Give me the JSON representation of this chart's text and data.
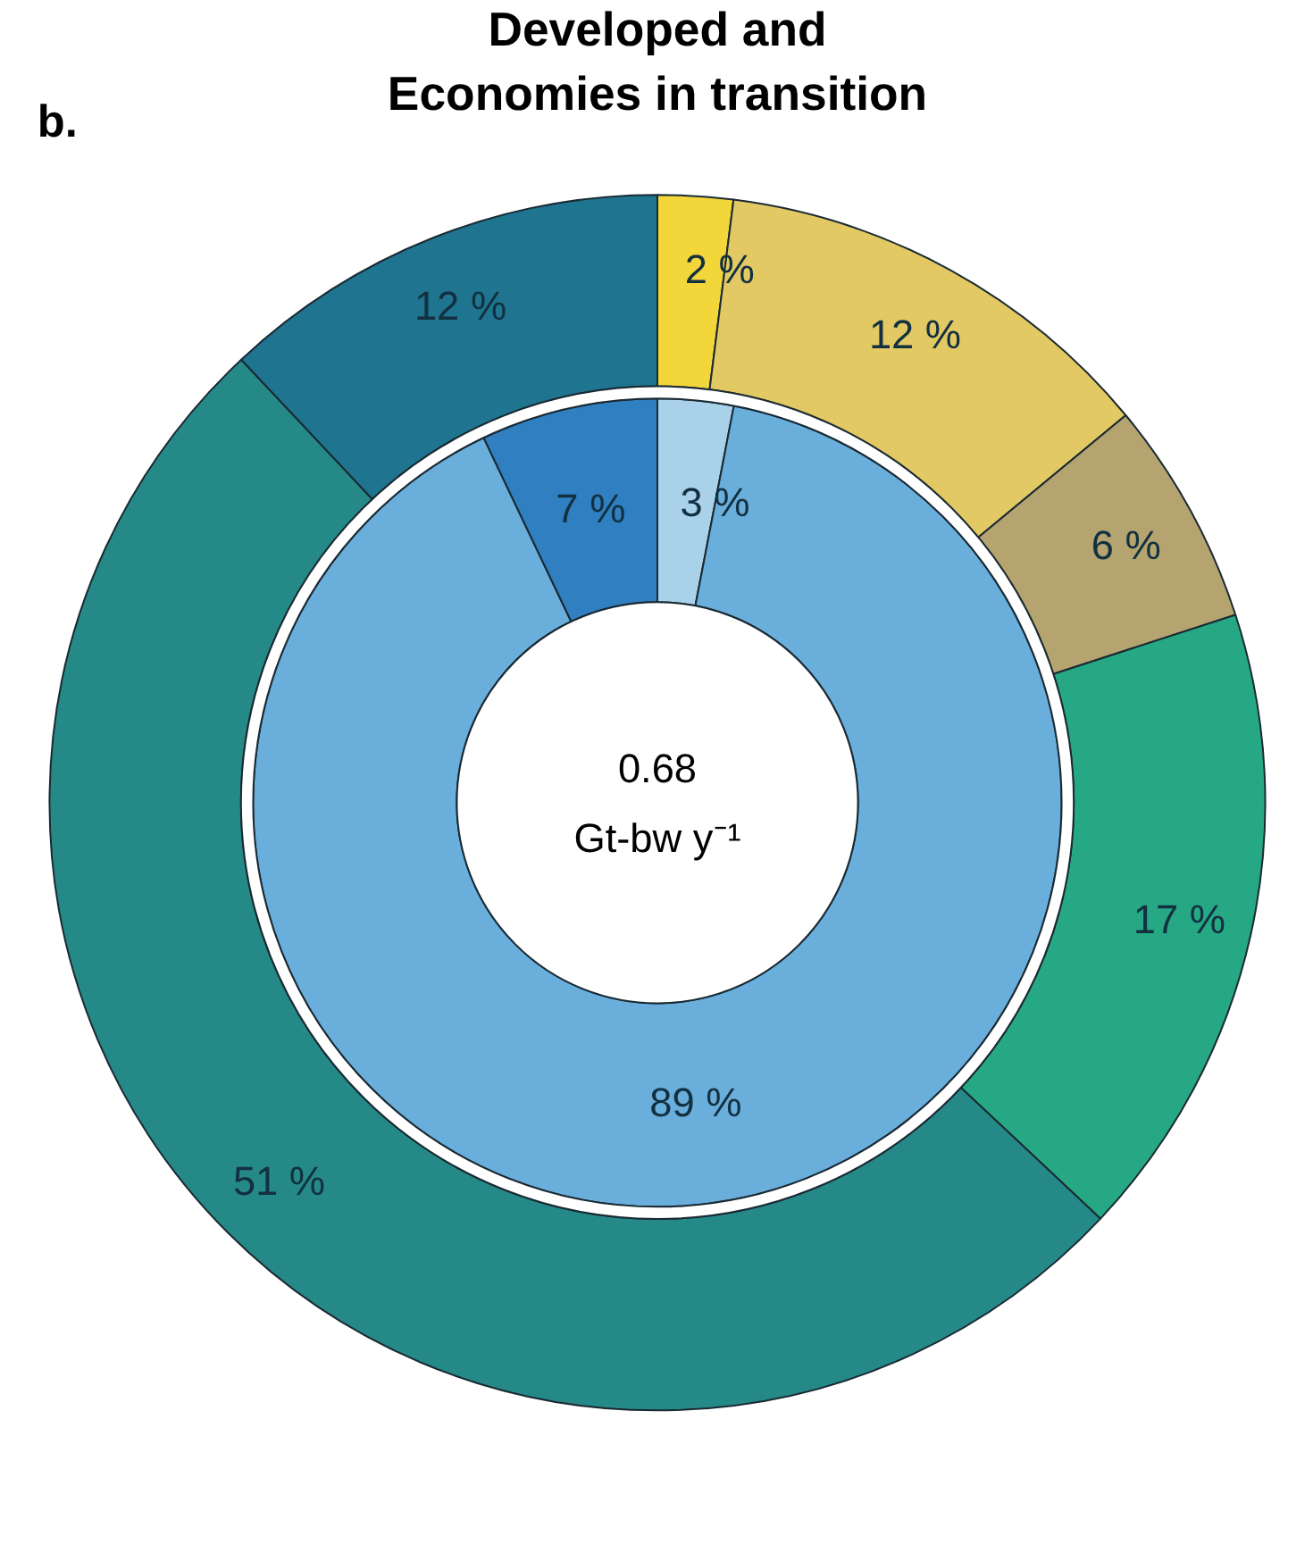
{
  "chart_data": {
    "type": "donut",
    "title": "Developed and\nEconomies in transition",
    "annotations": [
      "b.",
      "0.68\nGt-bw y⁻¹"
    ],
    "series": [
      {
        "values": [
          2,
          12,
          6,
          17,
          51,
          12
        ],
        "colors": [
          "#f3d63a",
          "#e2c963",
          "#b5a46f",
          "#27a884",
          "#258a87",
          "#1f7490"
        ],
        "value_labels": [
          "2 %",
          "12 %",
          "6 %",
          "17 %",
          "51 %",
          "12 %"
        ]
      },
      {
        "values": [
          3,
          89,
          7
        ],
        "colors": [
          "#a9d1ea",
          "#6aaedc",
          "#2f7fc1"
        ],
        "value_labels": [
          "3 %",
          "89 %",
          "7 %"
        ]
      }
    ]
  }
}
